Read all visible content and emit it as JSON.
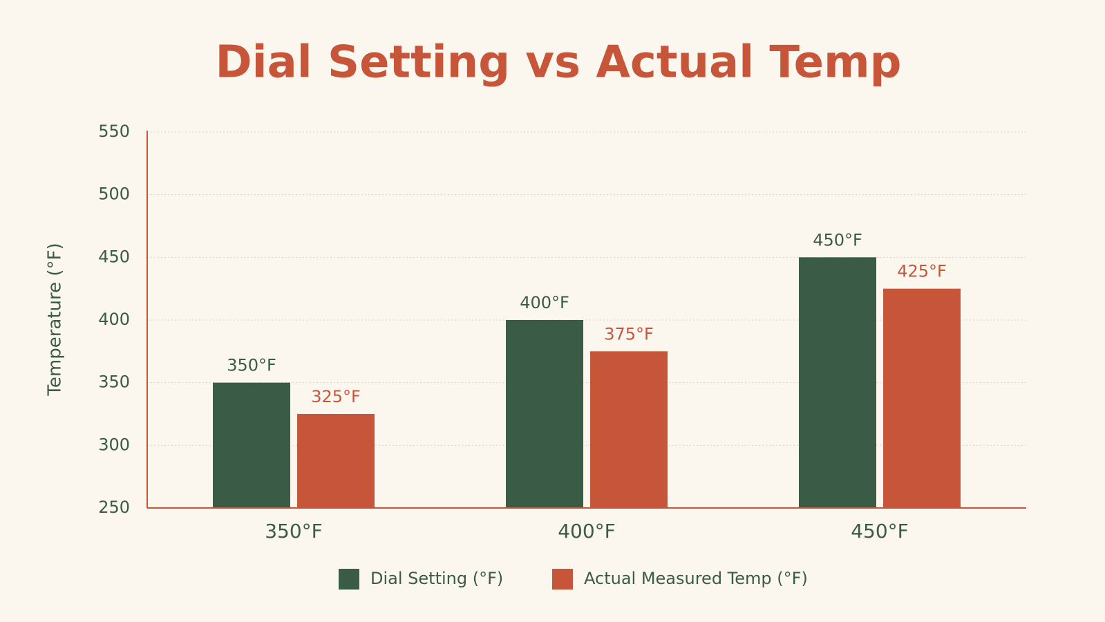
{
  "chart_data": {
    "type": "bar",
    "title": "Dial Setting vs Actual Temp",
    "y_label": "Temperature (°F)",
    "categories": [
      "350°F",
      "400°F",
      "450°F"
    ],
    "series": [
      {
        "name": "Dial Setting (°F)",
        "color": "#3a5b45",
        "values": [
          350,
          400,
          450
        ],
        "value_labels": [
          "350°F",
          "400°F",
          "450°F"
        ]
      },
      {
        "name": "Actual Measured Temp (°F)",
        "color": "#c6553a",
        "values": [
          325,
          375,
          425
        ],
        "value_labels": [
          "325°F",
          "375°F",
          "425°F"
        ]
      }
    ],
    "ylim": [
      250,
      550
    ],
    "yticks": [
      250,
      300,
      350,
      400,
      450,
      500,
      550
    ],
    "grid": true,
    "legend": "bottom"
  }
}
